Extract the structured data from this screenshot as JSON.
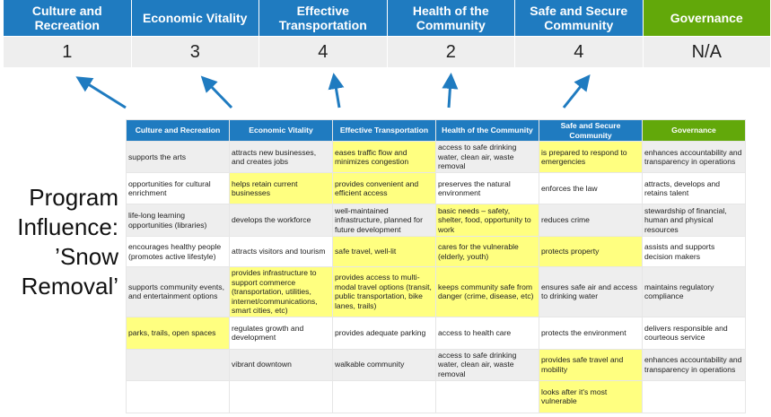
{
  "categories": [
    {
      "label": "Culture and Recreation",
      "score": "1"
    },
    {
      "label": "Economic Vitality",
      "score": "3"
    },
    {
      "label": "Effective Transportation",
      "score": "4"
    },
    {
      "label": "Health of the Community",
      "score": "2"
    },
    {
      "label": "Safe and Secure Community",
      "score": "4"
    },
    {
      "label": "Governance",
      "score": "N/A"
    }
  ],
  "colors": {
    "primary": "#1f7bc0",
    "governance": "#62a80a",
    "highlight": "#ffff80",
    "arrow": "#1f7bc0"
  },
  "program_label": "Program Influence: ’Snow Removal’",
  "table": {
    "headers": [
      "Culture and Recreation",
      "Economic Vitality",
      "Effective Transportation",
      "Health of the Community",
      "Safe and Secure Community",
      "Governance"
    ],
    "rows": [
      [
        {
          "t": "supports the arts"
        },
        {
          "t": "attracts new businesses, and creates jobs"
        },
        {
          "t": "eases traffic flow and minimizes congestion",
          "hl": true
        },
        {
          "t": "access to safe drinking water, clean air, waste removal"
        },
        {
          "t": "is prepared to respond to emergencies",
          "hl": true
        },
        {
          "t": "enhances accountability and transparency in operations"
        }
      ],
      [
        {
          "t": "opportunities for cultural enrichment"
        },
        {
          "t": "helps retain current businesses",
          "hl": true
        },
        {
          "t": "provides convenient and efficient access",
          "hl": true
        },
        {
          "t": "preserves the natural environment"
        },
        {
          "t": "enforces the law"
        },
        {
          "t": "attracts, develops and retains talent"
        }
      ],
      [
        {
          "t": "life-long learning opportunities (libraries)"
        },
        {
          "t": "develops the workforce"
        },
        {
          "t": "well-maintained infrastructure, planned for future development"
        },
        {
          "t": "basic needs – safety, shelter, food, opportunity to work",
          "hl": true
        },
        {
          "t": "reduces crime"
        },
        {
          "t": "stewardship of financial, human and physical resources"
        }
      ],
      [
        {
          "t": "encourages healthy people (promotes active lifestyle)"
        },
        {
          "t": "attracts visitors and tourism"
        },
        {
          "t": "safe travel, well-lit",
          "hl": true
        },
        {
          "t": "cares for the vulnerable (elderly, youth)",
          "hl": true
        },
        {
          "t": "protects property",
          "hl": true
        },
        {
          "t": "assists and supports decision makers"
        }
      ],
      [
        {
          "t": "supports community events, and entertainment options"
        },
        {
          "t": "provides infrastructure to support commerce (transportation, utilities, internet/communications, smart cities, etc)",
          "hl": true
        },
        {
          "t": "provides access to multi-modal travel options (transit, public transportation, bike lanes, trails)",
          "hl": true
        },
        {
          "t": "keeps community safe from danger (crime, disease, etc)",
          "hl": true
        },
        {
          "t": "ensures safe air and access to drinking water"
        },
        {
          "t": "maintains regulatory compliance"
        }
      ],
      [
        {
          "t": "parks, trails, open spaces",
          "hl": true
        },
        {
          "t": "regulates growth and development"
        },
        {
          "t": "provides adequate parking"
        },
        {
          "t": "access to health care"
        },
        {
          "t": "protects the environment"
        },
        {
          "t": "delivers responsible and courteous service"
        }
      ],
      [
        {
          "t": ""
        },
        {
          "t": "vibrant downtown"
        },
        {
          "t": "walkable community"
        },
        {
          "t": "access to safe drinking water, clean air, waste removal"
        },
        {
          "t": "provides safe travel and mobility",
          "hl": true
        },
        {
          "t": "enhances accountability and transparency in operations"
        }
      ],
      [
        {
          "t": ""
        },
        {
          "t": ""
        },
        {
          "t": ""
        },
        {
          "t": ""
        },
        {
          "t": "looks after it's most vulnerable",
          "hl": true
        },
        {
          "t": ""
        }
      ]
    ]
  }
}
